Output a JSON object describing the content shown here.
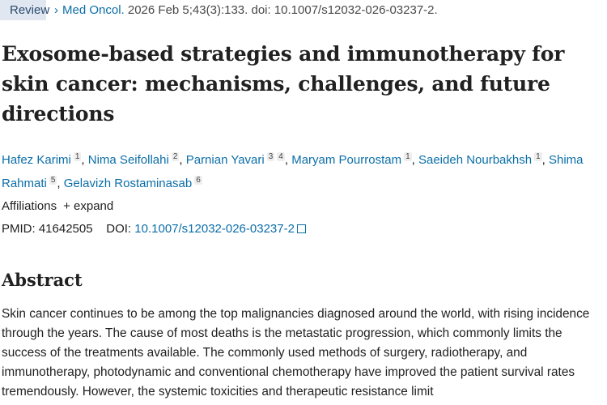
{
  "badge": "Review",
  "citation": {
    "journal": "Med Oncol.",
    "details": " 2026 Feb 5;43(3):133. doi: 10.1007/s12032-026-03237-2."
  },
  "title": "Exosome-based strategies and immunotherapy for skin cancer: mechanisms, challenges, and future directions",
  "authors": [
    {
      "name": "Hafez Karimi",
      "aff": "1"
    },
    {
      "name": "Nima Seifollahi",
      "aff": "2"
    },
    {
      "name": "Parnian Yavari",
      "aff": "3 4"
    },
    {
      "name": "Maryam Pourrostam",
      "aff": "1"
    },
    {
      "name": "Saeideh Nourbakhsh",
      "aff": "1"
    },
    {
      "name": "Shima Rahmati",
      "aff": "5"
    },
    {
      "name": "Gelavizh Rostaminasab",
      "aff": "6"
    }
  ],
  "affiliations": {
    "label": "Affiliations",
    "expand": "+ expand"
  },
  "ids": {
    "pmid_label": "PMID:",
    "pmid": "41642505",
    "doi_label": "DOI:",
    "doi": "10.1007/s12032-026-03237-2"
  },
  "abstract": {
    "heading": "Abstract",
    "text": "Skin cancer continues to be among the top malignancies diagnosed around the world, with rising incidence through the years. The cause of most deaths is the metastatic progression, which commonly limits the success of the treatments available. The commonly used methods of surgery, radiotherapy, and immunotherapy, photodynamic and conventional chemotherapy have improved the patient survival rates tremendously. However, the systemic toxicities and therapeutic resistance limit"
  }
}
